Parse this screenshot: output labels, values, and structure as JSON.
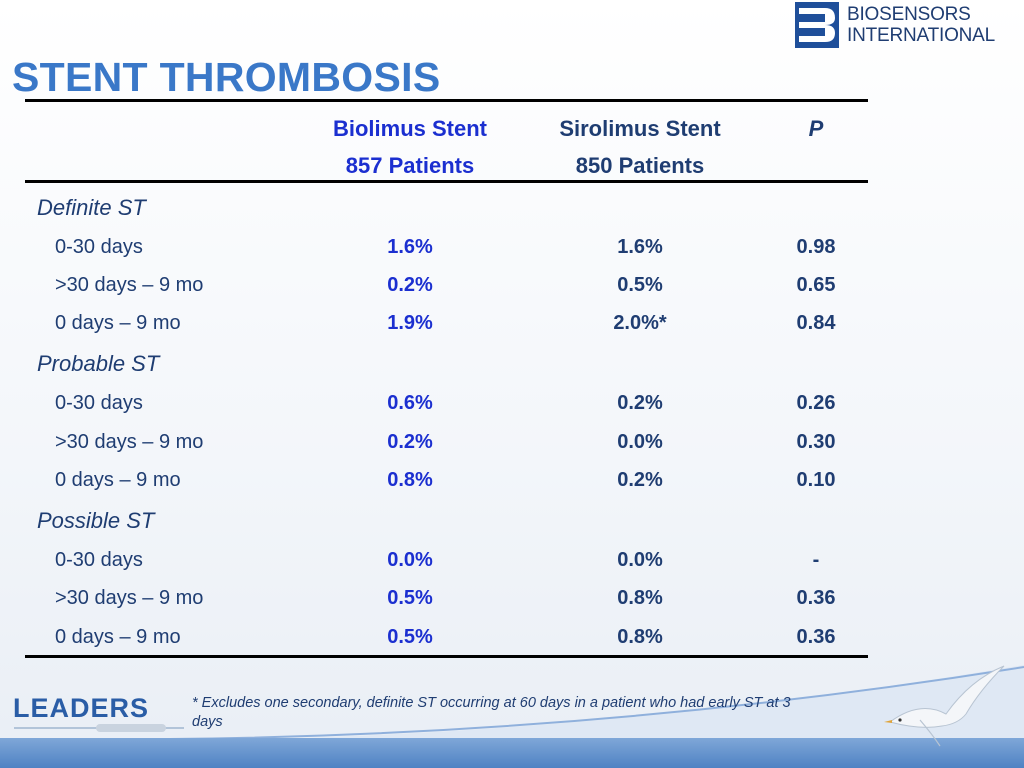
{
  "brand": {
    "logo_line1": "BIOSENSORS",
    "logo_line2": "INTERNATIONAL",
    "logo_icon": "biosensors-b-icon",
    "footer_logo": "LEADERS"
  },
  "title": "STENT THROMBOSIS",
  "table": {
    "columns": {
      "bio_line1": "Biolimus Stent",
      "bio_line2": "857 Patients",
      "siro_line1": "Sirolimus Stent",
      "siro_line2": "850 Patients",
      "p": "P"
    },
    "groups": [
      {
        "name": "Definite ST",
        "rows": [
          {
            "label": "0-30 days",
            "bio": "1.6%",
            "siro": "1.6%",
            "p": "0.98"
          },
          {
            "label": ">30 days – 9 mo",
            "bio": "0.2%",
            "siro": "0.5%",
            "p": "0.65"
          },
          {
            "label": "0 days – 9 mo",
            "bio": "1.9%",
            "siro": "2.0%*",
            "p": "0.84"
          }
        ]
      },
      {
        "name": "Probable ST",
        "rows": [
          {
            "label": "0-30 days",
            "bio": "0.6%",
            "siro": "0.2%",
            "p": "0.26"
          },
          {
            "label": ">30 days – 9 mo",
            "bio": "0.2%",
            "siro": "0.0%",
            "p": "0.30"
          },
          {
            "label": "0 days – 9 mo",
            "bio": "0.8%",
            "siro": "0.2%",
            "p": "0.10"
          }
        ]
      },
      {
        "name": "Possible ST",
        "rows": [
          {
            "label": "0-30 days",
            "bio": "0.0%",
            "siro": "0.0%",
            "p": "-"
          },
          {
            "label": ">30 days – 9 mo",
            "bio": "0.5%",
            "siro": "0.8%",
            "p": "0.36"
          },
          {
            "label": "0 days – 9 mo",
            "bio": "0.5%",
            "siro": "0.8%",
            "p": "0.36"
          }
        ]
      }
    ]
  },
  "footnote": "* Excludes one secondary, definite ST occurring at 60 days in a patient who had early ST at 3 days",
  "colors": {
    "title": "#3a78c8",
    "biolimus": "#1b2fd0",
    "navy": "#1f3d72"
  }
}
